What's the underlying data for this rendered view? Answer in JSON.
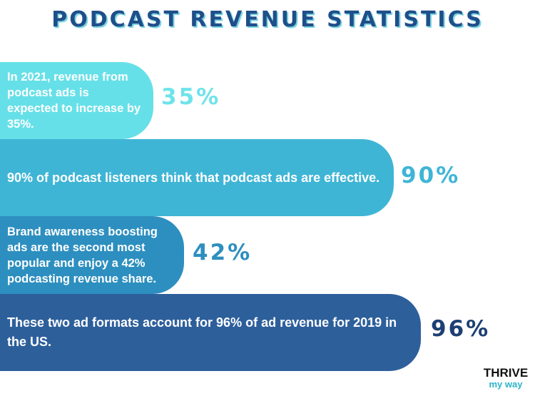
{
  "title": "PODCAST REVENUE STATISTICS",
  "chart_data": {
    "type": "bar",
    "title": "PODCAST REVENUE STATISTICS",
    "categories": [
      "In 2021, revenue from podcast ads is expected to increase by 35%.",
      "90% of podcast listeners think that podcast ads are effective.",
      "Brand awareness boosting ads are the second most popular and enjoy a 42% podcasting revenue share.",
      "These two ad formats account for 96% of ad revenue for 2019 in the US."
    ],
    "values": [
      35,
      90,
      42,
      96
    ],
    "value_labels": [
      "35%",
      "90%",
      "42%",
      "96%"
    ],
    "unit": "%"
  },
  "colors": {
    "bar1": "#66e0e8",
    "bar2": "#3fb5d6",
    "bar3": "#2d8fbf",
    "bar4": "#2d5f9b",
    "label1": "#6fe3ea",
    "label2": "#3fb5d6",
    "label3": "#2d8fbf",
    "label4": "#1e3f73",
    "title": "#1f4f8a"
  },
  "logo": {
    "top": "THRIVE",
    "bottom": "my way"
  }
}
